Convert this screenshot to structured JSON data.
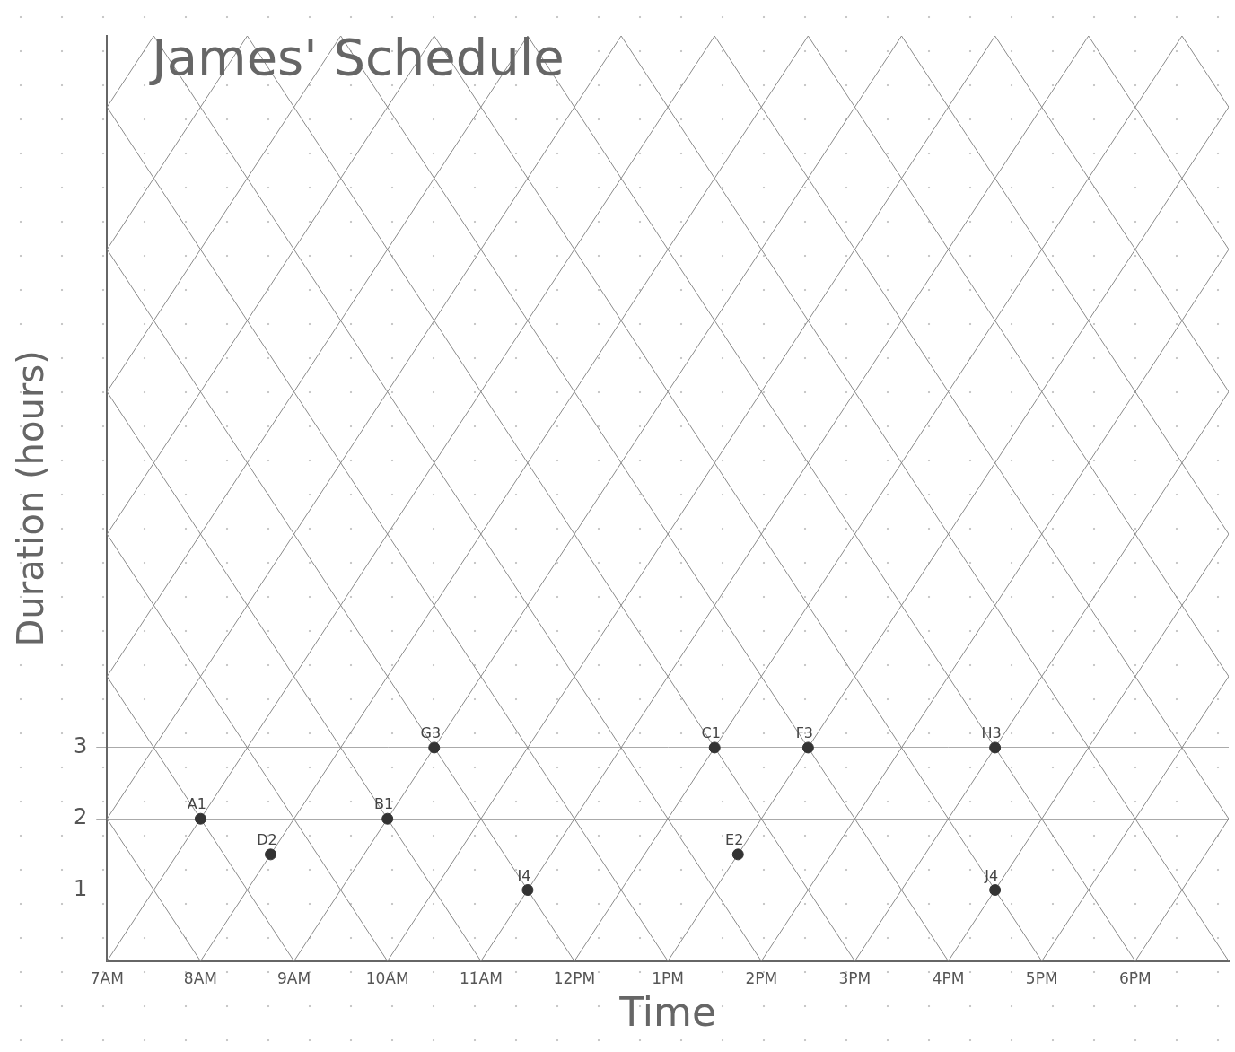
{
  "chart_data": {
    "type": "scatter",
    "title": "James' Schedule",
    "x_label": "Time",
    "y_label": "Duration (hours)",
    "x": [
      8,
      8.75,
      10,
      10.5,
      11.5,
      13.5,
      13.75,
      14.5,
      16.5,
      16.5
    ],
    "values": [
      2,
      1.5,
      2,
      3,
      1,
      3,
      1.5,
      3,
      3,
      1
    ],
    "point_labels": [
      "A1",
      "D2",
      "B1",
      "G3",
      "I4",
      "C1",
      "E2",
      "F3",
      "H3",
      "J4"
    ],
    "color": "#333333",
    "marker": "circle",
    "xlim": [
      7,
      19
    ],
    "xticks": [
      {
        "value": 7,
        "label": "7AM"
      },
      {
        "value": 8,
        "label": "8AM"
      },
      {
        "value": 9,
        "label": "9AM"
      },
      {
        "value": 10,
        "label": "10AM"
      },
      {
        "value": 11,
        "label": "11AM"
      },
      {
        "value": 12,
        "label": "12PM"
      },
      {
        "value": 13,
        "label": "1PM"
      },
      {
        "value": 14,
        "label": "2PM"
      },
      {
        "value": 15,
        "label": "3PM"
      },
      {
        "value": 16,
        "label": "4PM"
      },
      {
        "value": 17,
        "label": "5PM"
      },
      {
        "value": 18,
        "label": "6PM"
      }
    ],
    "ylim": [
      0,
      13
    ],
    "yticks": [
      1,
      2,
      3
    ],
    "grid": true
  }
}
